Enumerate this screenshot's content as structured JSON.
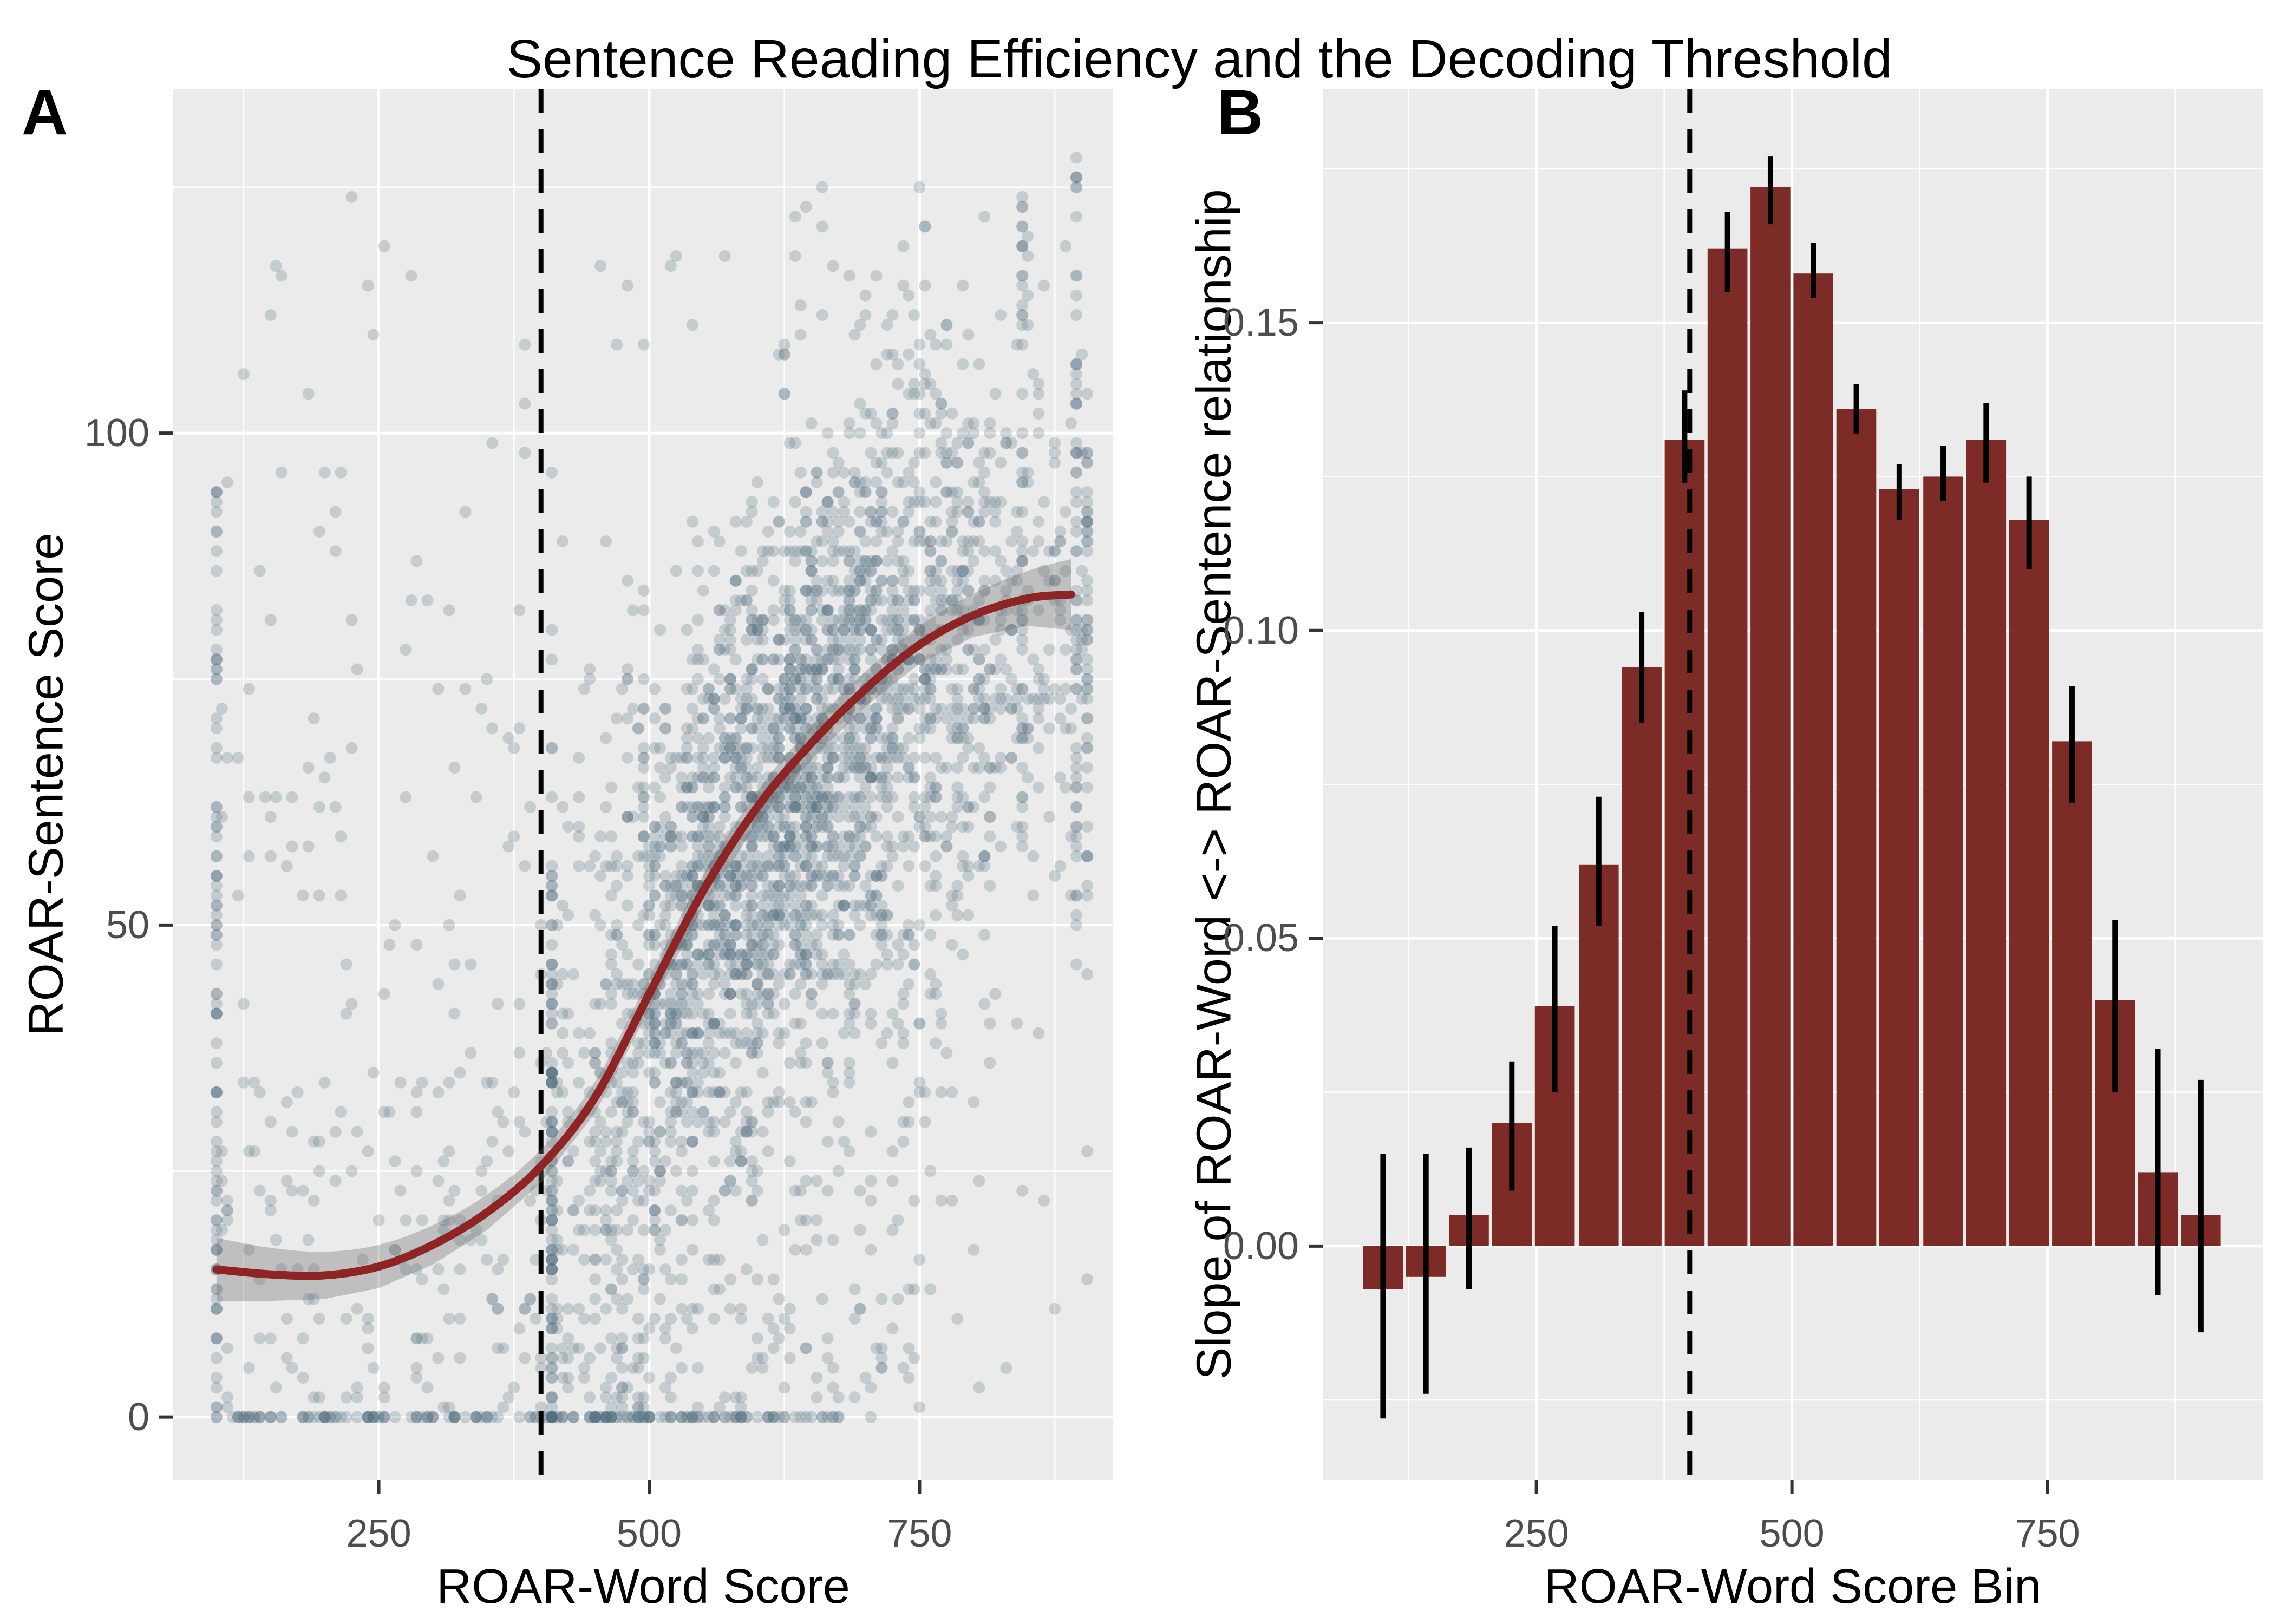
{
  "title": "Sentence Reading Efficiency and the Decoding Threshold",
  "colors": {
    "panel_bg": "#EBEBEB",
    "grid": "#FFFFFF",
    "bar": "#7C2B26",
    "fit_line": "#8E2423",
    "ribbon": "rgba(110,110,110,0.35)",
    "point": "#54707E",
    "threshold_line": "#000000",
    "error_bar": "#000000",
    "tick_text": "#4D4D4D",
    "tick_mark": "#333333"
  },
  "chart_data": [
    {
      "id": "panel_a",
      "type": "scatter",
      "tag": "A",
      "xlabel": "ROAR-Word Score",
      "ylabel": "ROAR-Sentence Score",
      "x_ticks": [
        250,
        500,
        750
      ],
      "x_tick_labels": [
        "250",
        "500",
        "750"
      ],
      "y_ticks": [
        0,
        50,
        100
      ],
      "y_tick_labels": [
        "0",
        "50",
        "100"
      ],
      "x_minor": [
        125,
        375,
        625,
        875
      ],
      "y_minor": [
        25,
        75,
        125
      ],
      "xlim": [
        60,
        929
      ],
      "ylim": [
        -6.4,
        135
      ],
      "grid": true,
      "threshold_x": 400,
      "fit_line": {
        "x": [
          100,
          150,
          200,
          250,
          300,
          350,
          400,
          450,
          500,
          550,
          600,
          650,
          700,
          750,
          800,
          850,
          890
        ],
        "y": [
          15,
          14.5,
          14.4,
          15.3,
          17.5,
          20.8,
          25.5,
          32.5,
          43,
          53.5,
          62,
          68.5,
          74,
          78.5,
          81.5,
          83.2,
          83.6
        ],
        "ribbon_halfwidth": [
          3.2,
          2.7,
          2.4,
          2.2,
          2.0,
          1.8,
          1.7,
          1.6,
          1.6,
          1.6,
          1.6,
          1.7,
          1.8,
          1.9,
          2.2,
          2.8,
          3.6
        ]
      },
      "points_gen": {
        "seed": 7,
        "radius": 11,
        "opacity": 0.25,
        "x_quantum": 5,
        "y_clip": [
          0,
          128
        ],
        "components": [
          {
            "kind": "cloud",
            "n": 3100,
            "x_mean": 635,
            "x_sd": 125,
            "x_min": 408,
            "x_max": 906,
            "y_sd": 15,
            "low_tail": 0.13
          },
          {
            "kind": "left",
            "n": 260,
            "x_min": 103,
            "x_max": 405
          },
          {
            "kind": "column",
            "n": 95,
            "x": 100,
            "y_min": 0,
            "y_max": 95
          },
          {
            "kind": "row",
            "n": 170,
            "y": 0,
            "x_min": 100,
            "x_max": 680
          },
          {
            "kind": "column",
            "n": 60,
            "x": 896,
            "y_min": 50,
            "y_max": 130
          },
          {
            "kind": "column",
            "n": 42,
            "x": 846,
            "y_min": 55,
            "y_max": 126
          },
          {
            "kind": "box",
            "n": 28,
            "x_min": 430,
            "x_max": 760,
            "y_min": 108,
            "y_max": 128
          }
        ]
      }
    },
    {
      "id": "panel_b",
      "type": "bar",
      "tag": "B",
      "xlabel": "ROAR-Word Score Bin",
      "ylabel": "Slope of ROAR-Word <-> ROAR-Sentence relationship",
      "x_ticks": [
        250,
        500,
        750
      ],
      "x_tick_labels": [
        "250",
        "500",
        "750"
      ],
      "y_ticks": [
        0,
        0.05,
        0.1,
        0.15
      ],
      "y_tick_labels": [
        "0.00",
        "0.05",
        "0.10",
        "0.15"
      ],
      "x_minor": [
        125,
        375,
        625,
        875
      ],
      "y_minor": [
        -0.025,
        0.025,
        0.075,
        0.125,
        0.175
      ],
      "xlim": [
        41,
        961
      ],
      "ylim": [
        -0.038,
        0.188
      ],
      "grid": true,
      "threshold_x": 400,
      "bar_width_units": 39,
      "bin_centers": [
        100,
        142,
        184,
        226,
        268,
        311,
        353,
        395,
        437,
        479,
        521,
        563,
        605,
        648,
        690,
        732,
        774,
        816,
        858,
        900
      ],
      "values": [
        -0.007,
        -0.005,
        0.005,
        0.02,
        0.039,
        0.062,
        0.094,
        0.131,
        0.162,
        0.172,
        0.158,
        0.136,
        0.123,
        0.125,
        0.131,
        0.118,
        0.082,
        0.04,
        0.012,
        0.005
      ],
      "ci_low": [
        -0.028,
        -0.024,
        -0.007,
        0.009,
        0.025,
        0.052,
        0.085,
        0.124,
        0.155,
        0.166,
        0.154,
        0.132,
        0.118,
        0.121,
        0.124,
        0.11,
        0.072,
        0.025,
        -0.008,
        -0.014
      ],
      "ci_high": [
        0.015,
        0.015,
        0.016,
        0.03,
        0.052,
        0.073,
        0.103,
        0.139,
        0.168,
        0.177,
        0.163,
        0.14,
        0.127,
        0.13,
        0.137,
        0.125,
        0.091,
        0.053,
        0.032,
        0.027
      ]
    }
  ]
}
